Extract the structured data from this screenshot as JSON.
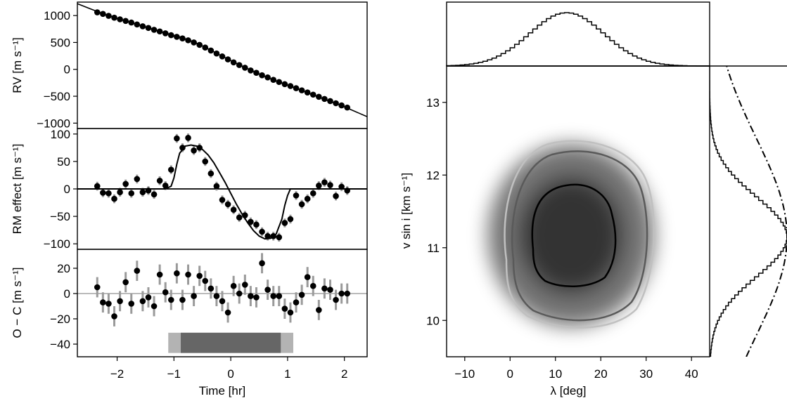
{
  "chart_data": [
    {
      "type": "scatter",
      "panel": "rv",
      "ylabel": "RV [m s⁻¹]",
      "ylim": [
        -1100,
        1250
      ],
      "xlim": [
        -2.7,
        2.4
      ],
      "yticks": [
        1000,
        500,
        0,
        -500,
        -1000
      ],
      "ytick_labels": [
        "1000",
        "500",
        "0",
        "−500",
        "−1000"
      ],
      "points": {
        "x": [
          -2.35,
          -2.25,
          -2.15,
          -2.05,
          -1.95,
          -1.85,
          -1.75,
          -1.65,
          -1.55,
          -1.45,
          -1.35,
          -1.25,
          -1.15,
          -1.05,
          -0.95,
          -0.85,
          -0.75,
          -0.65,
          -0.55,
          -0.45,
          -0.35,
          -0.25,
          -0.15,
          -0.05,
          0.05,
          0.15,
          0.25,
          0.35,
          0.45,
          0.55,
          0.65,
          0.75,
          0.85,
          0.95,
          1.05,
          1.15,
          1.25,
          1.35,
          1.45,
          1.55,
          1.65,
          1.75,
          1.85,
          1.95,
          2.05
        ],
        "y": [
          1060,
          1030,
          995,
          960,
          930,
          900,
          870,
          835,
          800,
          770,
          735,
          705,
          670,
          635,
          605,
          575,
          540,
          500,
          455,
          405,
          350,
          295,
          240,
          185,
          130,
          80,
          30,
          -20,
          -65,
          -110,
          -150,
          -195,
          -235,
          -275,
          -310,
          -350,
          -390,
          -430,
          -470,
          -510,
          -550,
          -590,
          -630,
          -670,
          -710
        ]
      },
      "model_x": [
        -2.7,
        -2.35,
        -1.95,
        -1.55,
        -1.15,
        -0.85,
        -0.65,
        -0.45,
        -0.25,
        -0.05,
        0.15,
        0.35,
        0.55,
        0.75,
        0.95,
        1.15,
        1.55,
        1.95,
        2.4
      ],
      "model_y": [
        1220,
        1075,
        930,
        805,
        675,
        585,
        510,
        410,
        300,
        190,
        85,
        -15,
        -110,
        -195,
        -275,
        -355,
        -515,
        -675,
        -880
      ]
    },
    {
      "type": "scatter",
      "panel": "rm_effect",
      "ylabel": "RM effect [m s⁻¹]",
      "ylim": [
        -110,
        110
      ],
      "yticks": [
        100,
        50,
        0,
        -50,
        -100
      ],
      "ytick_labels": [
        "100",
        "50",
        "0",
        "−50",
        "−100"
      ],
      "points": {
        "x": [
          -2.35,
          -2.25,
          -2.15,
          -2.05,
          -1.95,
          -1.85,
          -1.75,
          -1.65,
          -1.55,
          -1.45,
          -1.35,
          -1.25,
          -1.15,
          -1.05,
          -0.95,
          -0.85,
          -0.75,
          -0.65,
          -0.55,
          -0.45,
          -0.35,
          -0.25,
          -0.15,
          -0.05,
          0.05,
          0.15,
          0.25,
          0.35,
          0.45,
          0.55,
          0.65,
          0.75,
          0.85,
          0.95,
          1.05,
          1.15,
          1.25,
          1.35,
          1.45,
          1.55,
          1.65,
          1.75,
          1.85,
          1.95,
          2.05
        ],
        "y": [
          5,
          -7,
          -8,
          -18,
          -6,
          9,
          -8,
          18,
          -6,
          -3,
          -10,
          15,
          6,
          35,
          92,
          75,
          93,
          70,
          75,
          50,
          28,
          5,
          -20,
          -28,
          -38,
          -52,
          -48,
          -60,
          -65,
          -78,
          -86,
          -86,
          -88,
          -62,
          -55,
          -12,
          -28,
          -18,
          -8,
          6,
          12,
          7,
          -13,
          4,
          -3
        ]
      },
      "model_x": [
        -2.7,
        -1.15,
        -1.05,
        -1.0,
        -0.95,
        -0.9,
        -0.8,
        -0.7,
        -0.6,
        -0.5,
        -0.4,
        -0.3,
        -0.2,
        -0.1,
        0.0,
        0.1,
        0.2,
        0.3,
        0.4,
        0.5,
        0.6,
        0.7,
        0.8,
        0.9,
        0.95,
        1.0,
        1.05,
        2.4
      ],
      "model_y": [
        0,
        0,
        5,
        20,
        45,
        65,
        78,
        80,
        78,
        72,
        62,
        48,
        30,
        12,
        -8,
        -28,
        -46,
        -62,
        -76,
        -86,
        -91,
        -90,
        -82,
        -55,
        -30,
        -12,
        0,
        0
      ]
    },
    {
      "type": "scatter",
      "panel": "residuals",
      "xlabel": "Time [hr]",
      "ylabel": "O − C [m s⁻¹]",
      "ylim": [
        -50,
        35
      ],
      "yticks": [
        20,
        0,
        -20,
        -40
      ],
      "ytick_labels": [
        "20",
        "0",
        "−20",
        "−40"
      ],
      "xticks": [
        -2,
        -1,
        0,
        1,
        2
      ],
      "xtick_labels": [
        "−2",
        "−1",
        "0",
        "1",
        "2"
      ],
      "points": {
        "x": [
          -2.35,
          -2.25,
          -2.15,
          -2.05,
          -1.95,
          -1.85,
          -1.75,
          -1.65,
          -1.55,
          -1.45,
          -1.35,
          -1.25,
          -1.15,
          -1.05,
          -0.95,
          -0.85,
          -0.75,
          -0.65,
          -0.55,
          -0.45,
          -0.35,
          -0.25,
          -0.15,
          -0.05,
          0.05,
          0.15,
          0.25,
          0.35,
          0.45,
          0.55,
          0.65,
          0.75,
          0.85,
          0.95,
          1.05,
          1.15,
          1.25,
          1.35,
          1.45,
          1.55,
          1.65,
          1.75,
          1.85,
          1.95,
          2.05
        ],
        "y": [
          5,
          -7,
          -8,
          -18,
          -6,
          9,
          -8,
          18,
          -6,
          -3,
          -10,
          15,
          1,
          -5,
          16,
          -5,
          15,
          -2,
          14,
          10,
          4,
          -2,
          -6,
          -15,
          6,
          0,
          7,
          -2,
          -3,
          24,
          3,
          -2,
          -2,
          -12,
          -15,
          -7,
          -1,
          13,
          6,
          -13,
          4,
          3,
          -5,
          0,
          0
        ]
      },
      "transit_bars": [
        {
          "level": "ingress/egress",
          "x": [
            -1.1,
            1.1
          ],
          "color": "#b3b3b3"
        },
        {
          "level": "full transit",
          "x": [
            -0.88,
            0.88
          ],
          "color": "#666666"
        }
      ]
    },
    {
      "type": "heatmap",
      "panel": "joint_posterior",
      "xlabel": "λ [deg]",
      "ylabel": "v sin i [km s⁻¹]",
      "xlim": [
        -14,
        44
      ],
      "ylim": [
        9.5,
        13.5
      ],
      "xticks": [
        -10,
        0,
        10,
        20,
        30,
        40
      ],
      "xtick_labels": [
        "−10",
        "0",
        "10",
        "20",
        "30",
        "40"
      ],
      "yticks": [
        10,
        11,
        12,
        13
      ],
      "ytick_labels": [
        "10",
        "11",
        "12",
        "13"
      ],
      "peak": {
        "lambda": 13.5,
        "vsini": 11.15
      },
      "contour_colors": [
        "#000000",
        "#5a5a5a",
        "#c0c0c0"
      ],
      "marginal_lambda_peak": 12.5,
      "marginal_vsini_peak": 11.15,
      "prior_curve": "dash-dot"
    }
  ]
}
